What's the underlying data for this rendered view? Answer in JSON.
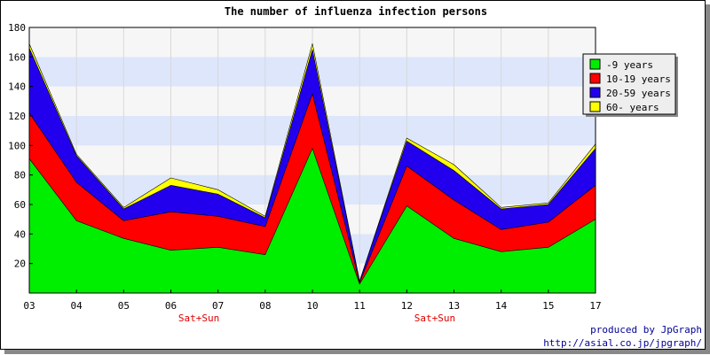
{
  "chart_data": {
    "type": "area",
    "stacked": true,
    "title": "The number of influenza infection persons",
    "categories": [
      "03",
      "04",
      "05",
      "06",
      "07",
      "08",
      "10",
      "11",
      "12",
      "13",
      "14",
      "15",
      "17"
    ],
    "category_notes": [
      {
        "index": 4,
        "text": "Sat+Sun"
      },
      {
        "index": 9,
        "text": "Sat+Sun"
      }
    ],
    "ylim": [
      0,
      180
    ],
    "yticks": [
      20,
      40,
      60,
      80,
      100,
      120,
      140,
      160,
      180
    ],
    "grid": true,
    "legend_position": "top-right",
    "series": [
      {
        "name": "-9 years",
        "color": "#00ee00",
        "values": [
          91,
          49,
          37,
          29,
          31,
          26,
          98,
          6,
          59,
          37,
          28,
          31,
          50
        ]
      },
      {
        "name": "10-19 years",
        "color": "#ff0000",
        "values": [
          31,
          26,
          12,
          26,
          21,
          19,
          37,
          1,
          27,
          26,
          15,
          17,
          23
        ]
      },
      {
        "name": "20-59 years",
        "color": "#2200ee",
        "values": [
          44,
          18,
          8,
          18,
          15,
          6,
          30,
          1,
          17,
          20,
          14,
          12,
          25
        ]
      },
      {
        "name": "60- years",
        "color": "#ffff00",
        "values": [
          3,
          1,
          1,
          5,
          3,
          1,
          4,
          0,
          2,
          4,
          1,
          1,
          3
        ]
      }
    ]
  },
  "credits": {
    "line1": "produced by JpGraph",
    "line2": "http://asial.co.jp/jpgraph/"
  }
}
